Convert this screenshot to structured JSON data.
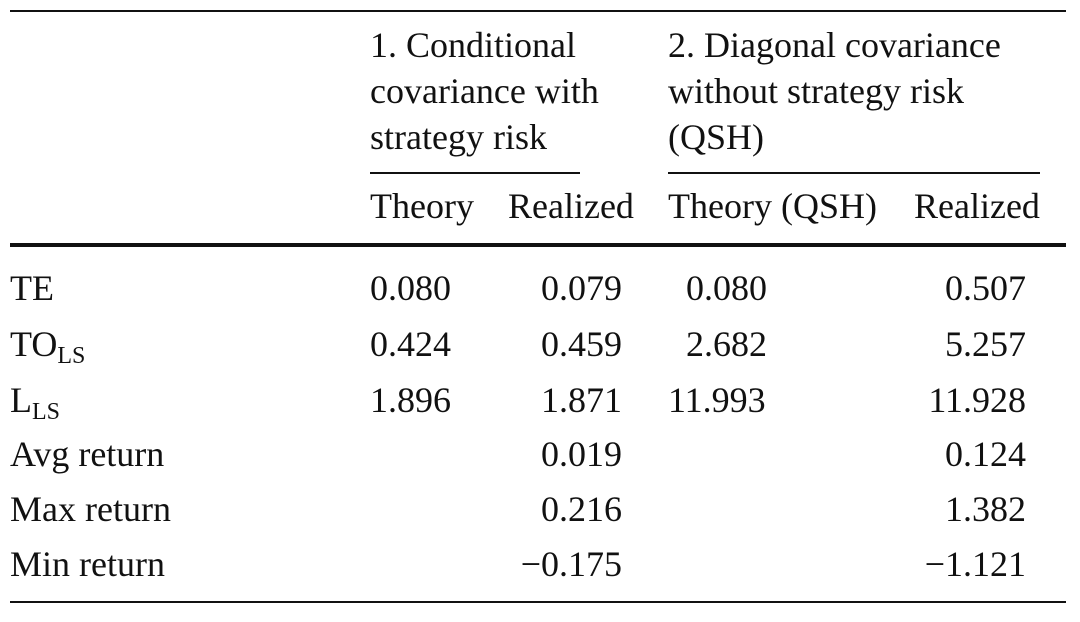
{
  "table": {
    "group_headers": [
      {
        "lines": [
          "1. Conditional",
          "covariance with",
          "strategy risk"
        ]
      },
      {
        "lines": [
          "2. Diagonal covariance",
          "without strategy risk",
          "(QSH)"
        ]
      }
    ],
    "col_headers": [
      "Theory",
      "Realized",
      "Theory (QSH)",
      "Realized"
    ],
    "rows": [
      {
        "label": "TE",
        "sub": "",
        "cells": [
          "0.080",
          "0.079",
          "0.080",
          "0.507"
        ]
      },
      {
        "label": "TO",
        "sub": "LS",
        "cells": [
          "0.424",
          "0.459",
          "2.682",
          "5.257"
        ]
      },
      {
        "label": "L",
        "sub": "LS",
        "cells": [
          "1.896",
          "1.871",
          "11.993",
          "11.928"
        ]
      },
      {
        "label": "Avg return",
        "sub": "",
        "cells": [
          "",
          "0.019",
          "",
          "0.124"
        ]
      },
      {
        "label": "Max return",
        "sub": "",
        "cells": [
          "",
          "0.216",
          "",
          "1.382"
        ]
      },
      {
        "label": "Min return",
        "sub": "",
        "cells": [
          "",
          "−0.175",
          "",
          "−1.121"
        ]
      }
    ]
  }
}
